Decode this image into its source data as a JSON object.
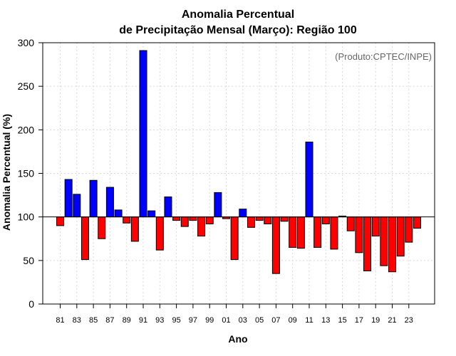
{
  "chart_data": {
    "type": "bar",
    "title_line1": "Anomalia Percentual",
    "title_line2": "de Precipitação Mensal (Março): Região 100",
    "xlabel": "Ano",
    "ylabel": "Anomalia Percentual (%)",
    "annotation": "(Produto:CPTEC/INPE)",
    "baseline": 100,
    "ylim": [
      0,
      300
    ],
    "yticks": [
      "0",
      "50",
      "100",
      "150",
      "200",
      "250",
      "300"
    ],
    "xtick_labels": [
      "81",
      "83",
      "85",
      "87",
      "89",
      "91",
      "93",
      "95",
      "97",
      "99",
      "01",
      "03",
      "05",
      "07",
      "09",
      "11",
      "13",
      "15",
      "17",
      "19",
      "21",
      "23"
    ],
    "categories": [
      "81",
      "82",
      "83",
      "84",
      "85",
      "86",
      "87",
      "88",
      "89",
      "90",
      "91",
      "92",
      "93",
      "94",
      "95",
      "96",
      "97",
      "98",
      "99",
      "00",
      "01",
      "02",
      "03",
      "04",
      "05",
      "06",
      "07",
      "08",
      "09",
      "10",
      "11",
      "12",
      "13",
      "14",
      "15",
      "16",
      "17",
      "18",
      "19",
      "20",
      "21",
      "22",
      "23",
      "24"
    ],
    "values": [
      90,
      143,
      126,
      51,
      142,
      75,
      134,
      108,
      93,
      72,
      291,
      107,
      62,
      123,
      96,
      89,
      96,
      78,
      92,
      128,
      98,
      51,
      109,
      88,
      96,
      92,
      35,
      95,
      65,
      64,
      186,
      65,
      92,
      63,
      101,
      84,
      59,
      38,
      78,
      44,
      37,
      55,
      71,
      87
    ],
    "colors": {
      "above": "#0000ff",
      "below": "#ff0000"
    }
  }
}
